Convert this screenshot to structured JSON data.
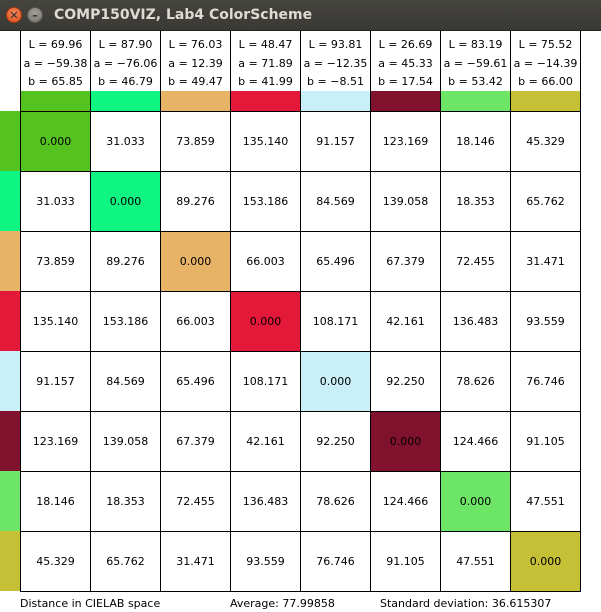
{
  "window": {
    "title": "COMP150VIZ, Lab4 ColorScheme",
    "close_icon": "close-icon",
    "minimize_icon": "minimize-icon"
  },
  "colors": [
    {
      "hex": "#54c21f",
      "L": "L = 69.96",
      "a": "a = −59.38",
      "b": "b = 65.85"
    },
    {
      "hex": "#0ef581",
      "L": "L = 87.90",
      "a": "a = −76.06",
      "b": "b = 46.79"
    },
    {
      "hex": "#e7b367",
      "L": "L = 76.03",
      "a": "a = 12.39",
      "b": "b = 49.47"
    },
    {
      "hex": "#e4193a",
      "L": "L = 48.47",
      "a": "a = 71.89",
      "b": "b = 41.99"
    },
    {
      "hex": "#c9f0f8",
      "L": "L = 93.81",
      "a": "a = −12.35",
      "b": "b = −8.51"
    },
    {
      "hex": "#80122e",
      "L": "L = 26.69",
      "a": "a = 45.33",
      "b": "b = 17.54"
    },
    {
      "hex": "#6de566",
      "L": "L = 83.19",
      "a": "a = −59.61",
      "b": "b = 53.42"
    },
    {
      "hex": "#c5c036",
      "L": "L = 75.52",
      "a": "a = −14.39",
      "b": "b = 66.00"
    }
  ],
  "matrix": [
    [
      "0.000",
      "31.033",
      "73.859",
      "135.140",
      "91.157",
      "123.169",
      "18.146",
      "45.329"
    ],
    [
      "31.033",
      "0.000",
      "89.276",
      "153.186",
      "84.569",
      "139.058",
      "18.353",
      "65.762"
    ],
    [
      "73.859",
      "89.276",
      "0.000",
      "66.003",
      "65.496",
      "67.379",
      "72.455",
      "31.471"
    ],
    [
      "135.140",
      "153.186",
      "66.003",
      "0.000",
      "108.171",
      "42.161",
      "136.483",
      "93.559"
    ],
    [
      "91.157",
      "84.569",
      "65.496",
      "108.171",
      "0.000",
      "92.250",
      "78.626",
      "76.746"
    ],
    [
      "123.169",
      "139.058",
      "67.379",
      "42.161",
      "92.250",
      "0.000",
      "124.466",
      "91.105"
    ],
    [
      "18.146",
      "18.353",
      "72.455",
      "136.483",
      "78.626",
      "124.466",
      "0.000",
      "47.551"
    ],
    [
      "45.329",
      "65.762",
      "31.471",
      "93.559",
      "76.746",
      "91.105",
      "47.551",
      "0.000"
    ]
  ],
  "status": {
    "space_label": "Distance in CIELAB space",
    "average": "Average: 77.99858",
    "std_dev": "Standard deviation: 36.615307"
  }
}
